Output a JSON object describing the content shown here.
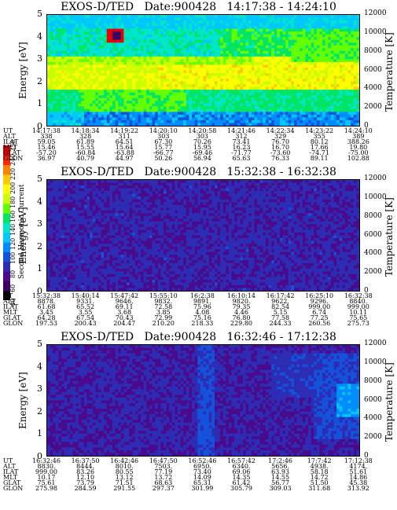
{
  "colorbar": {
    "label": "Second Harmonic Current",
    "ticks": [
      "40",
      "60",
      "80",
      "100",
      "120",
      "140",
      "160",
      "180",
      "200",
      "220",
      "240",
      "250"
    ]
  },
  "chart_data": [
    {
      "type": "heatmap",
      "title": "EXOS-D/TED   Date:900428   14:17:38 - 14:24:10",
      "ylabel": "Energy [eV]",
      "y2label": "Temperature [K]",
      "ylim": [
        0,
        5
      ],
      "y2lim": [
        0,
        12000
      ],
      "yticks": [
        "0",
        "1",
        "2",
        "3",
        "4",
        "5"
      ],
      "y2ticks": [
        "0",
        "2000",
        "4000",
        "6000",
        "8000",
        "10000",
        "12000"
      ],
      "row_labels": [
        "UT",
        "ALT",
        "ILAT",
        "MLT",
        "GLAT",
        "GLON"
      ],
      "columns": [
        [
          "14:17:38",
          "338",
          "59.05",
          "15.46",
          "-57.20",
          "36.97"
        ],
        [
          "14:18:34",
          "328",
          "61.89",
          "15.55",
          "-60.84",
          "40.79"
        ],
        [
          "14:19:22",
          "311",
          "64.51",
          "15.64",
          "-63.88",
          "44.97"
        ],
        [
          "14:20:10",
          "303",
          "67.30",
          "15.77",
          "-66.77",
          "50.26"
        ],
        [
          "14:20:58",
          "303",
          "70.26",
          "15.95",
          "-69.46",
          "56.94"
        ],
        [
          "14:21:46",
          "312",
          "73.41",
          "16.23",
          "-71.77",
          "65.63"
        ],
        [
          "14:22:34",
          "329",
          "76.70",
          "16.70",
          "-73.60",
          "76.33"
        ],
        [
          "14:23:22",
          "355",
          "80.12",
          "17.66",
          "-74.71",
          "89.11"
        ],
        [
          "14:24:10",
          "389",
          "388.26",
          "19.80",
          "-75.00",
          "102.88"
        ]
      ],
      "colorscale": [
        "#000000",
        "#3a0062",
        "#4b0a8c",
        "#2c2cb4",
        "#1452dc",
        "#008cff",
        "#00c8ff",
        "#00e6c8",
        "#00e664",
        "#64ff00",
        "#c8ff00",
        "#ffff00",
        "#ffc800",
        "#ff8200",
        "#ff2800",
        "#e60000"
      ]
    },
    {
      "type": "heatmap",
      "title": "EXOS-D/TED   Date:900428   15:32:38 - 16:32:38",
      "ylabel": "Energy [eV]",
      "y2label": "Temperature [K]",
      "ylim": [
        0,
        5
      ],
      "y2lim": [
        0,
        12000
      ],
      "yticks": [
        "0",
        "1",
        "2",
        "3",
        "4",
        "5"
      ],
      "y2ticks": [
        "0",
        "2000",
        "4000",
        "6000",
        "8000",
        "10000",
        "12000"
      ],
      "row_labels": [
        "UT",
        "ALT",
        "ILAT",
        "MLT",
        "GLAT",
        "GLON"
      ],
      "columns": [
        [
          "15:32:38",
          "8878.",
          "61.68",
          "3.45",
          "64.28",
          "197.53"
        ],
        [
          "15:40:14",
          "9331.",
          "65.52",
          "3.55",
          "67.54",
          "200.43"
        ],
        [
          "15:47:42",
          "9646.",
          "69.11",
          "3.68",
          "70.43",
          "204.47"
        ],
        [
          "15:55:10",
          "9832.",
          "72.58",
          "3.85",
          "72.99",
          "210.20"
        ],
        [
          "16:2:38",
          "9891.",
          "75.96",
          "4.08",
          "75.16",
          "218.33"
        ],
        [
          "16:10:14",
          "9820.",
          "79.35",
          "4.46",
          "76.80",
          "229.80"
        ],
        [
          "16:17:42",
          "9622.",
          "82.54",
          "5.15",
          "77.58",
          "244.33"
        ],
        [
          "16:25:10",
          "9296.",
          "999.00",
          "6.74",
          "77.25",
          "260.56"
        ],
        [
          "16:32:38",
          "8840.",
          "999.00",
          "10.11",
          "75.65",
          "275.73"
        ]
      ]
    },
    {
      "type": "heatmap",
      "title": "EXOS-D/TED   Date:900428   16:32:46 - 17:12:38",
      "ylabel": "Energy [eV]",
      "y2label": "Temperature [K]",
      "ylim": [
        0,
        5
      ],
      "y2lim": [
        0,
        12000
      ],
      "yticks": [
        "0",
        "1",
        "2",
        "3",
        "4",
        "5"
      ],
      "y2ticks": [
        "0",
        "2000",
        "4000",
        "6000",
        "8000",
        "10000",
        "12000"
      ],
      "row_labels": [
        "UT",
        "ALT",
        "ILAT",
        "MLT",
        "GLAT",
        "GLON"
      ],
      "columns": [
        [
          "16:32:46",
          "8830.",
          "999.00",
          "10.17",
          "75.61",
          "275.98"
        ],
        [
          "16:37:50",
          "8444.",
          "83.26",
          "12.10",
          "73.79",
          "284.59"
        ],
        [
          "16:42:46",
          "8010.",
          "80.55",
          "13.12",
          "71.51",
          "291.55"
        ],
        [
          "16:47:50",
          "7503.",
          "77.19",
          "13.72",
          "68.63",
          "297.37"
        ],
        [
          "16:52:46",
          "6950.",
          "73.40",
          "14.09",
          "65.31",
          "301.99"
        ],
        [
          "16:57:42",
          "6340.",
          "69.06",
          "14.35",
          "61.42",
          "305.79"
        ],
        [
          "17:2:46",
          "5656.",
          "63.93",
          "14.55",
          "56.77",
          "309.03"
        ],
        [
          "17:7:42",
          "4938.",
          "58.18",
          "14.72",
          "51.50",
          "311.68"
        ],
        [
          "17:12:38",
          "4174.",
          "51.61",
          "14.86",
          "45.38",
          "313.92"
        ]
      ]
    }
  ]
}
